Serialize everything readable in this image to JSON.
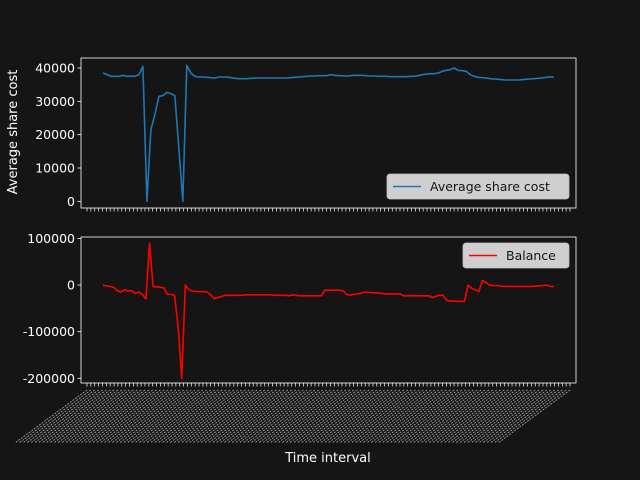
{
  "figure": {
    "background": "#151515",
    "fg": "#ffffff"
  },
  "chart_data": [
    {
      "type": "line",
      "ylabel": "Average share cost",
      "xlabel": "",
      "ylim": [
        -2000,
        43000
      ],
      "yticks": [
        0,
        10000,
        20000,
        30000,
        40000
      ],
      "grid": false,
      "legend_position": "lower-right",
      "series": [
        {
          "name": "Average share cost",
          "color": "#1f77b4",
          "values": [
            38500,
            38000,
            37500,
            37500,
            37500,
            37800,
            37500,
            37600,
            37500,
            38000,
            40500,
            0,
            21500,
            26000,
            31500,
            31700,
            32700,
            32300,
            31700,
            16000,
            0,
            40800,
            38500,
            37500,
            37300,
            37300,
            37200,
            37100,
            37000,
            37300,
            37300,
            37300,
            37100,
            36900,
            36800,
            36800,
            36800,
            36900,
            37000,
            37000,
            37000,
            37000,
            37000,
            37000,
            37000,
            37000,
            37000,
            37100,
            37200,
            37300,
            37400,
            37500,
            37600,
            37600,
            37700,
            37700,
            37700,
            38000,
            37800,
            37700,
            37700,
            37600,
            37700,
            37800,
            37800,
            37800,
            37700,
            37600,
            37600,
            37500,
            37500,
            37500,
            37400,
            37400,
            37400,
            37400,
            37400,
            37500,
            37500,
            37700,
            38000,
            38200,
            38300,
            38300,
            38500,
            39000,
            39300,
            39500,
            40000,
            39300,
            39200,
            39000,
            38000,
            37500,
            37200,
            37100,
            37000,
            36800,
            36700,
            36600,
            36500,
            36400,
            36400,
            36400,
            36400,
            36500,
            36600,
            36700,
            36800,
            36900,
            37000,
            37200,
            37300,
            37300
          ]
        }
      ]
    },
    {
      "type": "line",
      "ylabel": "",
      "xlabel": "Time interval",
      "ylim": [
        -210000,
        103000
      ],
      "yticks": [
        -200000,
        -100000,
        0,
        100000
      ],
      "grid": false,
      "legend_position": "upper-right",
      "series": [
        {
          "name": "Balance",
          "color": "#ff0000",
          "values": [
            0,
            -2000,
            -3000,
            -5000,
            -12000,
            -15000,
            -10000,
            -13000,
            -12000,
            -18000,
            -15000,
            -20000,
            -30000,
            90000,
            -3000,
            -4000,
            -5000,
            -6000,
            -20000,
            -20000,
            -22000,
            -90000,
            -200000,
            0,
            -10000,
            -13000,
            -14000,
            -14000,
            -14000,
            -15000,
            -20000,
            -29000,
            -27000,
            -25000,
            -22000,
            -22000,
            -22000,
            -22000,
            -22000,
            -22000,
            -21000,
            -21000,
            -21000,
            -21000,
            -21000,
            -21000,
            -21000,
            -21000,
            -22000,
            -22000,
            -22000,
            -22000,
            -23000,
            -21000,
            -22000,
            -23000,
            -23000,
            -23000,
            -23000,
            -23000,
            -23000,
            -23000,
            -11000,
            -11000,
            -11000,
            -11000,
            -11000,
            -12000,
            -20000,
            -22000,
            -20000,
            -19000,
            -18000,
            -15000,
            -16000,
            -16000,
            -17000,
            -17000,
            -18000,
            -19000,
            -19000,
            -19000,
            -19000,
            -19000,
            -23000,
            -23000,
            -23000,
            -23000,
            -23000,
            -23000,
            -23000,
            -23000,
            -27000,
            -24000,
            -22000,
            -22000,
            -33000,
            -34000,
            -34000,
            -35000,
            -35000,
            -35000,
            0,
            -7000,
            -10000,
            -14000,
            10000,
            5000,
            0,
            -1000,
            -1000,
            -2000,
            -3000,
            -3000,
            -3000,
            -3000,
            -3000,
            -3000,
            -3000,
            -3000,
            -3000,
            -2000,
            -2000,
            -1000,
            0,
            -3000,
            -3000
          ]
        }
      ]
    }
  ]
}
